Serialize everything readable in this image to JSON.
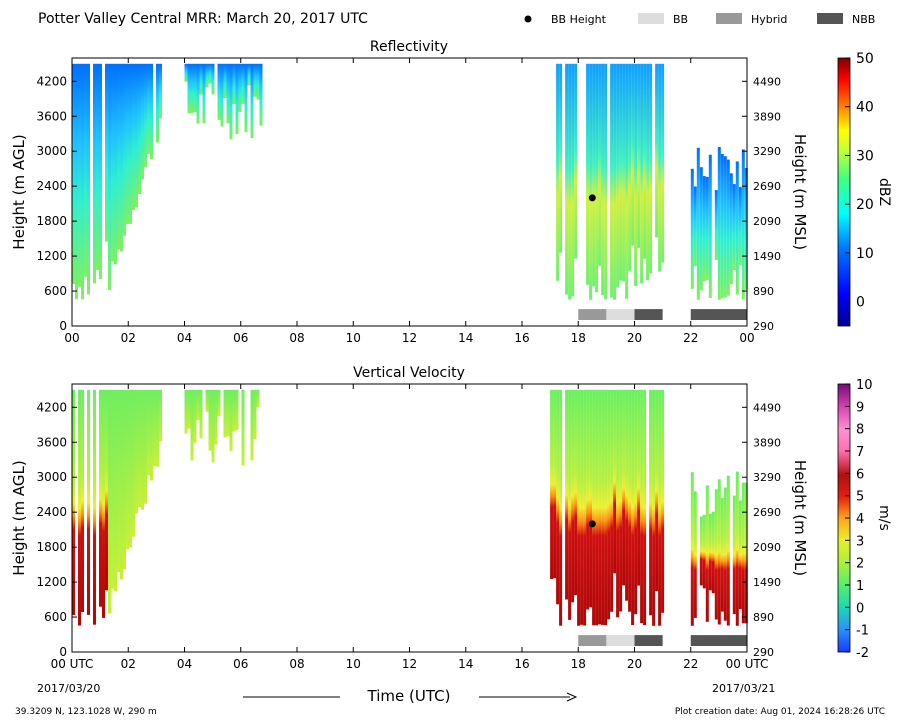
{
  "header": {
    "title": "Potter Valley Central MRR:  March 20, 2017 UTC",
    "legend": [
      {
        "label": "BB Height",
        "kind": "dot",
        "color": "#000000"
      },
      {
        "label": "BB",
        "kind": "box",
        "color": "#dddddd"
      },
      {
        "label": "Hybrid",
        "kind": "box",
        "color": "#999999"
      },
      {
        "label": "NBB",
        "kind": "box",
        "color": "#555555"
      }
    ]
  },
  "footer": {
    "location": "39.3209 N, 123.1028 W, 290 m",
    "creation": "Plot creation date: Aug 01, 2024 16:28:26 UTC",
    "xlabel": "Time (UTC)",
    "start_date": "2017/03/20",
    "end_date": "2017/03/21"
  },
  "chart_data": [
    {
      "type": "heatmap",
      "title": "Reflectivity",
      "xlabel": "Time (UTC)",
      "ylabel": "Height (m AGL)",
      "ylabel_right": "Height (m MSL)",
      "xticks": [
        "00",
        "02",
        "04",
        "06",
        "08",
        "10",
        "12",
        "14",
        "16",
        "18",
        "20",
        "22",
        "00"
      ],
      "xlim": [
        0,
        24
      ],
      "yticks": [
        0,
        600,
        1200,
        1800,
        2400,
        3000,
        3600,
        4200
      ],
      "yticks_right": [
        290,
        890,
        1490,
        2090,
        2690,
        3290,
        3890,
        4490
      ],
      "ylim": [
        0,
        4600
      ],
      "colorbar": {
        "label": "dBZ",
        "min": -5,
        "max": 50,
        "ticks": [
          0,
          10,
          20,
          30,
          40,
          50
        ]
      },
      "bright_band_height": {
        "time": 18.5,
        "height": 2200
      },
      "precip_type_bars": [
        {
          "start": 18.0,
          "end": 19.0,
          "type": "Hybrid"
        },
        {
          "start": 19.0,
          "end": 20.0,
          "type": "BB"
        },
        {
          "start": 20.0,
          "end": 21.0,
          "type": "NBB"
        },
        {
          "start": 22.0,
          "end": 24.0,
          "type": "NBB"
        }
      ],
      "echo_segments": [
        {
          "start": 0.0,
          "end": 3.2,
          "top": 4500,
          "base": 450,
          "avg": 8
        },
        {
          "start": 4.0,
          "end": 6.7,
          "top": 4500,
          "base": 3200,
          "avg": 5
        },
        {
          "start": 17.0,
          "end": 21.0,
          "top": 4500,
          "base": 450,
          "avg": 15
        },
        {
          "start": 22.0,
          "end": 24.0,
          "top": 3100,
          "base": 450,
          "avg": 10
        }
      ]
    },
    {
      "type": "heatmap",
      "title": "Vertical Velocity",
      "xlabel": "Time (UTC)",
      "ylabel": "Height (m AGL)",
      "ylabel_right": "Height (m MSL)",
      "xticks": [
        "00 UTC",
        "02",
        "04",
        "06",
        "08",
        "10",
        "12",
        "14",
        "16",
        "18",
        "20",
        "22",
        "00 UTC"
      ],
      "xlim": [
        0,
        24
      ],
      "yticks": [
        0,
        600,
        1200,
        1800,
        2400,
        3000,
        3600,
        4200
      ],
      "yticks_right": [
        290,
        890,
        1490,
        2090,
        2690,
        3290,
        3890,
        4490
      ],
      "ylim": [
        0,
        4600
      ],
      "colorbar": {
        "label": "m/s",
        "min": -2,
        "max": 10,
        "ticks": [
          -2,
          -1,
          0,
          1,
          2,
          3,
          4,
          5,
          6,
          7,
          8,
          9,
          10
        ]
      },
      "bright_band_height": {
        "time": 18.5,
        "height": 2200
      },
      "precip_type_bars": [
        {
          "start": 18.0,
          "end": 19.0,
          "type": "Hybrid"
        },
        {
          "start": 19.0,
          "end": 20.0,
          "type": "BB"
        },
        {
          "start": 20.0,
          "end": 21.0,
          "type": "NBB"
        },
        {
          "start": 22.0,
          "end": 24.0,
          "type": "NBB"
        }
      ],
      "echo_segments": [
        {
          "start": 0.0,
          "end": 3.2,
          "top": 4500,
          "base": 450,
          "avg": 1.5
        },
        {
          "start": 4.0,
          "end": 6.7,
          "top": 4500,
          "base": 3200,
          "avg": 1.5
        },
        {
          "start": 17.0,
          "end": 21.0,
          "top": 4500,
          "base": 450,
          "avg": 4
        },
        {
          "start": 22.0,
          "end": 24.0,
          "top": 3100,
          "base": 450,
          "avg": 3
        }
      ]
    }
  ]
}
